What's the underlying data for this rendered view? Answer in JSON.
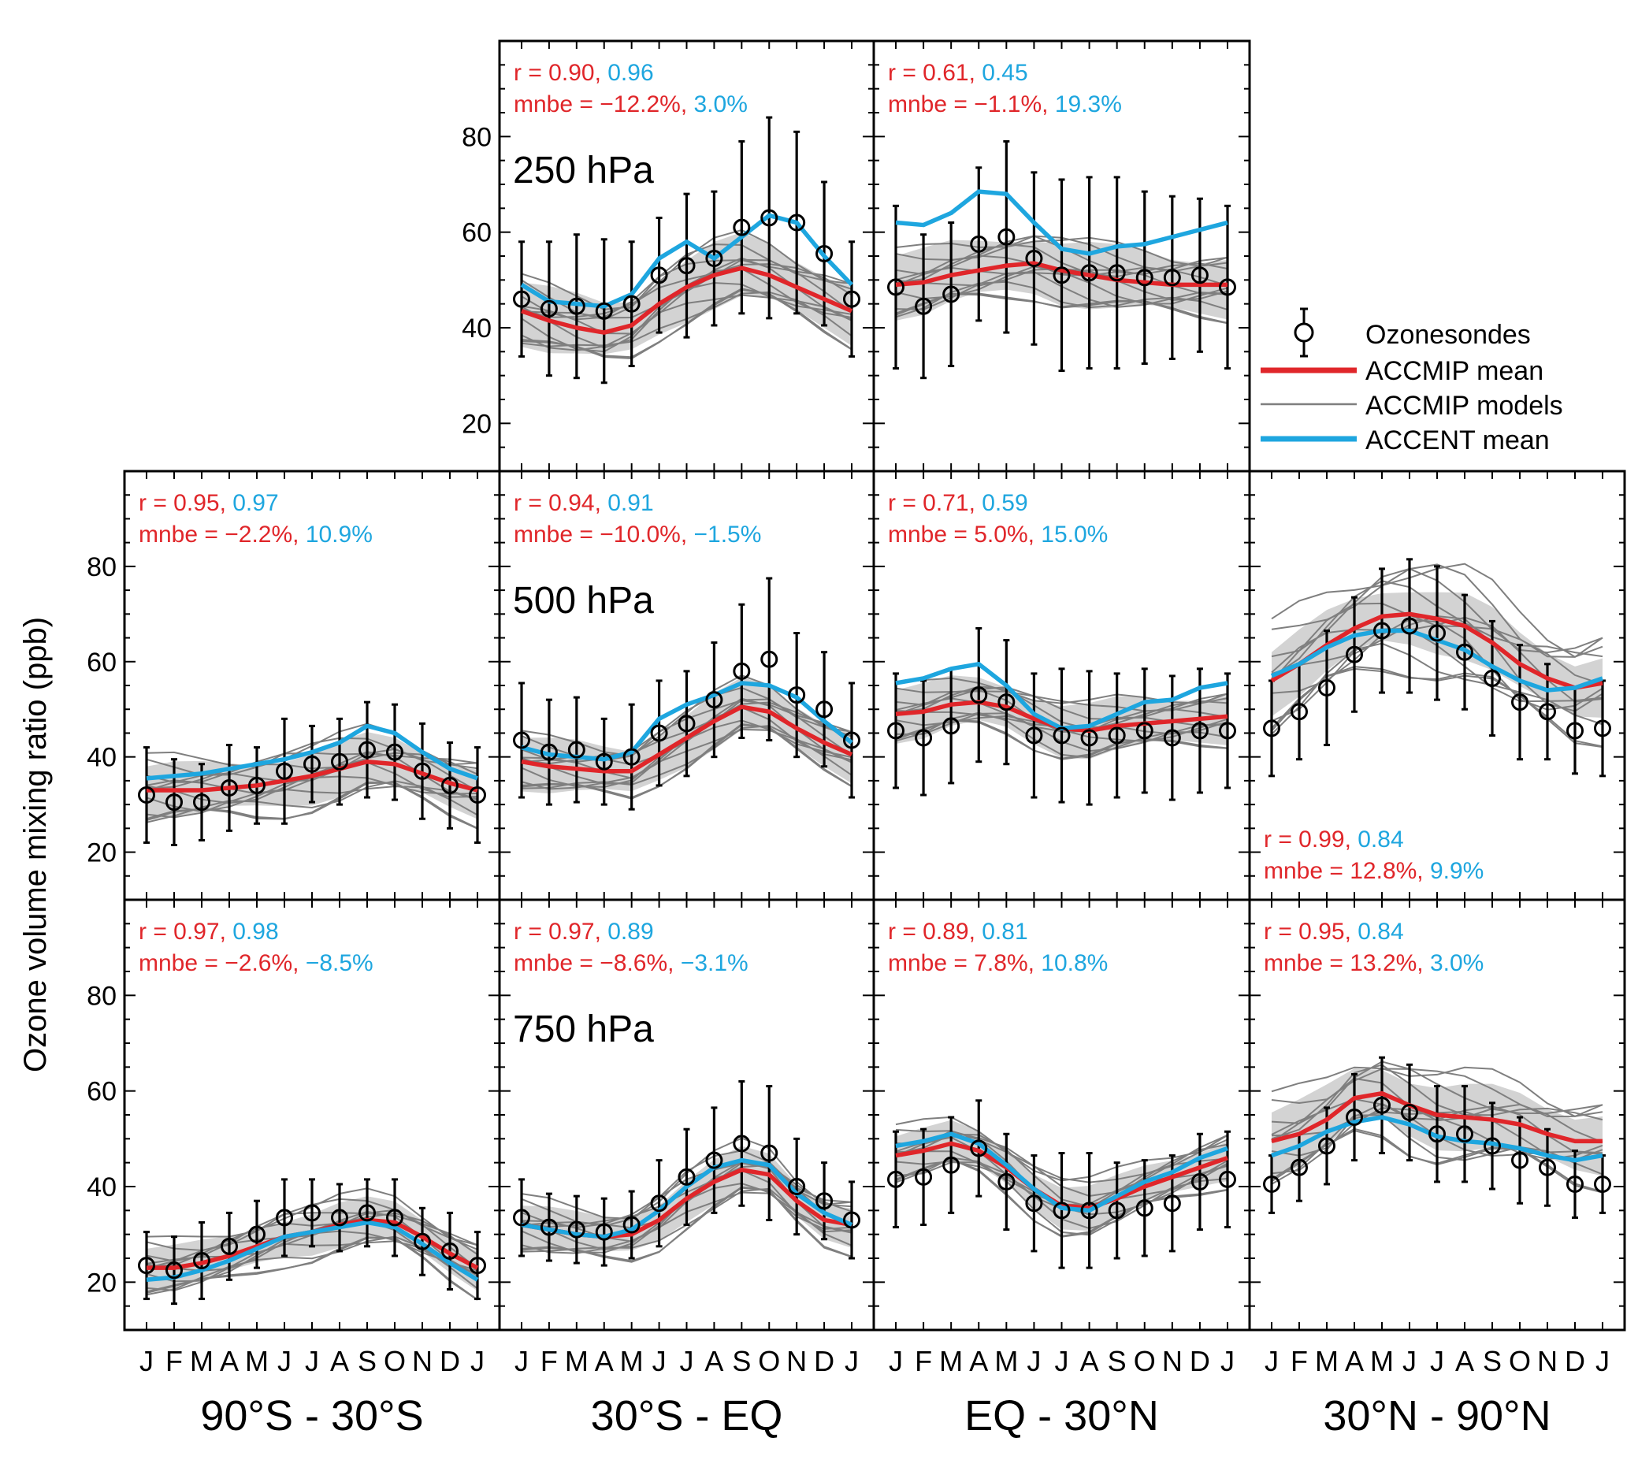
{
  "figure": {
    "ylabel": "Ozone volume mixing ratio (ppb)",
    "month_labels": [
      "J",
      "F",
      "M",
      "A",
      "M",
      "J",
      "J",
      "A",
      "S",
      "O",
      "N",
      "D",
      "J"
    ],
    "yticks": [
      20,
      40,
      60,
      80
    ],
    "columns": [
      "90°S - 30°S",
      "30°S - EQ",
      "EQ - 30°N",
      "30°N - 90°N"
    ],
    "pressure_labels": [
      "250 hPa",
      "500 hPa",
      "750 hPa"
    ],
    "colors": {
      "accmip_mean": "#e0262a",
      "accent_mean": "#1ea6df",
      "models": "#7f7f7f",
      "spread": "#d3d3d3",
      "obs": "#000000"
    }
  },
  "legend": {
    "obs": "Ozonesondes",
    "accmip_mean": "ACCMIP mean",
    "accmip_models": "ACCMIP models",
    "accent_mean": "ACCENT mean"
  },
  "chart_data": {
    "type": "line",
    "ylim": [
      10,
      100
    ],
    "xlabel": "",
    "ylabel": "Ozone volume mixing ratio (ppb)",
    "panels": [
      {
        "id": "250-sh-trop",
        "row": 0,
        "col": 1,
        "stats": {
          "r_prefix": "r = ",
          "r_accmip": "0.90",
          "r_accent": "0.96",
          "mnbe_prefix": "mnbe = ",
          "mnbe_accmip": "−12.2%",
          "mnbe_accent": "3.0%",
          "position": "top"
        },
        "obs": [
          46,
          44,
          44.5,
          43.5,
          45,
          51,
          53,
          54.5,
          61,
          63,
          62,
          55.5,
          46
        ],
        "obs_err": [
          12,
          14,
          15,
          15,
          13,
          12,
          15,
          14,
          18,
          21,
          19,
          15,
          12
        ],
        "accmip_mean": [
          43.5,
          41.5,
          40,
          39,
          40.5,
          45,
          48.5,
          51,
          52.5,
          51,
          48.5,
          46,
          43.5
        ],
        "accent_mean": [
          49,
          45.5,
          45,
          44.5,
          47,
          54.5,
          58,
          54.5,
          59,
          63.5,
          62,
          55,
          49
        ],
        "spread_width": 6,
        "model_amp": 6
      },
      {
        "id": "250-nh-trop",
        "row": 0,
        "col": 2,
        "stats": {
          "r_prefix": "r = ",
          "r_accmip": "0.61",
          "r_accent": "0.45",
          "mnbe_prefix": "mnbe = ",
          "mnbe_accmip": "−1.1%",
          "mnbe_accent": "19.3%",
          "position": "top"
        },
        "obs": [
          48.5,
          44.5,
          47,
          57.5,
          59,
          54.5,
          51,
          51.5,
          51.5,
          50.5,
          50.5,
          51,
          48.5
        ],
        "obs_err": [
          17,
          15,
          15,
          16,
          20,
          18,
          20,
          20,
          20,
          18,
          17,
          16,
          17
        ],
        "accmip_mean": [
          49,
          49.5,
          51,
          52,
          53,
          53.5,
          52,
          51,
          50,
          49.5,
          49,
          49,
          49
        ],
        "accent_mean": [
          62,
          61.5,
          64,
          68.5,
          68,
          62,
          56.5,
          55.5,
          57,
          57.5,
          59,
          60.5,
          62
        ],
        "spread_width": 6,
        "model_amp": 6
      },
      {
        "id": "500-sh-ext",
        "row": 1,
        "col": 0,
        "stats": {
          "r_prefix": "r = ",
          "r_accmip": "0.95",
          "r_accent": "0.97",
          "mnbe_prefix": "mnbe = ",
          "mnbe_accmip": "−2.2%",
          "mnbe_accent": "10.9%",
          "position": "top"
        },
        "obs": [
          32,
          30.5,
          30.5,
          33.5,
          34,
          37,
          38.5,
          39,
          41.5,
          41,
          37,
          34,
          32
        ],
        "obs_err": [
          10,
          9,
          8,
          9,
          8,
          11,
          8,
          9,
          10,
          10,
          10,
          9,
          10
        ],
        "accmip_mean": [
          33,
          33,
          33,
          33.5,
          34,
          35,
          36,
          37.5,
          39,
          38.5,
          36.5,
          34.5,
          33
        ],
        "accent_mean": [
          35.5,
          36,
          36.5,
          37.5,
          38.5,
          39.5,
          41,
          43,
          46.5,
          45,
          41,
          37.5,
          35.5
        ],
        "spread_width": 5,
        "model_amp": 6
      },
      {
        "id": "500-sh-trop",
        "row": 1,
        "col": 1,
        "stats": {
          "r_prefix": "r = ",
          "r_accmip": "0.94",
          "r_accent": "0.91",
          "mnbe_prefix": "mnbe = ",
          "mnbe_accmip": "−10.0%",
          "mnbe_accent": "−1.5%",
          "position": "top"
        },
        "obs": [
          43.5,
          41,
          41.5,
          39,
          40,
          45,
          47,
          52,
          58,
          60.5,
          53,
          50,
          43.5
        ],
        "obs_err": [
          12,
          11,
          11,
          9,
          11,
          11,
          11,
          12,
          14,
          17,
          13,
          12,
          12
        ],
        "accmip_mean": [
          39,
          38,
          37.5,
          37,
          37,
          40.5,
          44,
          47.5,
          50.5,
          49.5,
          46,
          43,
          40.5
        ],
        "accent_mean": [
          42,
          40.5,
          40,
          39.5,
          41,
          48,
          51,
          53,
          55.5,
          55,
          52.5,
          47.5,
          43
        ],
        "spread_width": 5,
        "model_amp": 5
      },
      {
        "id": "500-nh-trop",
        "row": 1,
        "col": 2,
        "stats": {
          "r_prefix": "r = ",
          "r_accmip": "0.71",
          "r_accent": "0.59",
          "mnbe_prefix": "mnbe = ",
          "mnbe_accmip": "5.0%",
          "mnbe_accent": "15.0%",
          "position": "top"
        },
        "obs": [
          45.5,
          44,
          46.5,
          53,
          51.5,
          44.5,
          44.5,
          44,
          44.5,
          45.5,
          44,
          45.5,
          45.5
        ],
        "obs_err": [
          12,
          12,
          12,
          14,
          13,
          13,
          14,
          14,
          13,
          13,
          13,
          13,
          12
        ],
        "accmip_mean": [
          49,
          49.5,
          51,
          51.5,
          50.5,
          48,
          46,
          45.5,
          46.5,
          47,
          47.5,
          48,
          48.5
        ],
        "accent_mean": [
          55.5,
          56.5,
          58.5,
          59.5,
          55,
          49,
          46,
          46.5,
          49,
          51.5,
          52,
          54.5,
          55.5
        ],
        "spread_width": 5,
        "model_amp": 5
      },
      {
        "id": "500-nh-ext",
        "row": 1,
        "col": 3,
        "stats": {
          "r_prefix": "r = ",
          "r_accmip": "0.99",
          "r_accent": "0.84",
          "mnbe_prefix": "mnbe = ",
          "mnbe_accmip": "12.8%",
          "mnbe_accent": "9.9%",
          "position": "bottom"
        },
        "obs": [
          46,
          49.5,
          54.5,
          61.5,
          66.5,
          67.5,
          66,
          62,
          56.5,
          51.5,
          49.5,
          45.5,
          46
        ],
        "obs_err": [
          10,
          10,
          12,
          12,
          13,
          14,
          14,
          12,
          12,
          12,
          10,
          9,
          10
        ],
        "accmip_mean": [
          56,
          59.5,
          63.5,
          67,
          69.5,
          70,
          69,
          67.5,
          64,
          59.5,
          56.5,
          54.5,
          55.5
        ],
        "accent_mean": [
          57,
          59.5,
          63,
          65.5,
          66.5,
          66.5,
          64.5,
          62.5,
          59,
          56,
          54,
          54.5,
          56.5
        ],
        "spread_width": 6,
        "model_amp": 10
      },
      {
        "id": "750-sh-ext",
        "row": 2,
        "col": 0,
        "stats": {
          "r_prefix": "r = ",
          "r_accmip": "0.97",
          "r_accent": "0.98",
          "mnbe_prefix": "mnbe = ",
          "mnbe_accmip": "−2.6%",
          "mnbe_accent": "−8.5%",
          "position": "top"
        },
        "obs": [
          23.5,
          22.5,
          24.5,
          27.5,
          30,
          33.5,
          34.5,
          33.5,
          34.5,
          33.5,
          28.5,
          26.5,
          23.5
        ],
        "obs_err": [
          7,
          7,
          8,
          7,
          7,
          8,
          7,
          7,
          7,
          8,
          7,
          8,
          7
        ],
        "accmip_mean": [
          23,
          23,
          24,
          25.5,
          27.5,
          29.5,
          30.5,
          32,
          33,
          32.5,
          29.5,
          26,
          23
        ],
        "accent_mean": [
          20.5,
          21,
          22.5,
          24.5,
          27,
          29.5,
          30.5,
          31.5,
          32.5,
          31.5,
          28,
          24,
          20.5
        ],
        "spread_width": 4,
        "model_amp": 5
      },
      {
        "id": "750-sh-trop",
        "row": 2,
        "col": 1,
        "stats": {
          "r_prefix": "r = ",
          "r_accmip": "0.97",
          "r_accent": "0.89",
          "mnbe_prefix": "mnbe = ",
          "mnbe_accmip": "−8.6%",
          "mnbe_accent": "−3.1%",
          "position": "top"
        },
        "obs": [
          33.5,
          31.5,
          31,
          30.5,
          32,
          36.5,
          42,
          45.5,
          49,
          47,
          40,
          37,
          33
        ],
        "obs_err": [
          8,
          7,
          7,
          7,
          7,
          9,
          10,
          11,
          13,
          14,
          10,
          8,
          8
        ],
        "accmip_mean": [
          32,
          31,
          30,
          29.5,
          30,
          33,
          37.5,
          41,
          43.5,
          42.5,
          37,
          33,
          32
        ],
        "accent_mean": [
          32,
          31,
          30,
          29.5,
          31,
          35,
          40,
          44,
          45.5,
          44.5,
          38.5,
          34.5,
          32
        ],
        "spread_width": 4,
        "model_amp": 5
      },
      {
        "id": "750-nh-trop",
        "row": 2,
        "col": 2,
        "stats": {
          "r_prefix": "r = ",
          "r_accmip": "0.89",
          "r_accent": "0.81",
          "mnbe_prefix": "mnbe = ",
          "mnbe_accmip": "7.8%",
          "mnbe_accent": "10.8%",
          "position": "top"
        },
        "obs": [
          41.5,
          42,
          44.5,
          48,
          41,
          36.5,
          35,
          35,
          35,
          35.5,
          36.5,
          41,
          41.5
        ],
        "obs_err": [
          10,
          10,
          10,
          10,
          10,
          10,
          12,
          12,
          10,
          10,
          10,
          10,
          10
        ],
        "accmip_mean": [
          46.5,
          47.5,
          49,
          47.5,
          44,
          39.5,
          36,
          35.5,
          37.5,
          40,
          42,
          44,
          46
        ],
        "accent_mean": [
          48.5,
          49.5,
          51,
          49,
          44.5,
          39.5,
          35.5,
          35,
          38,
          41,
          43,
          46,
          48
        ],
        "spread_width": 4,
        "model_amp": 5
      },
      {
        "id": "750-nh-ext",
        "row": 2,
        "col": 3,
        "stats": {
          "r_prefix": "r = ",
          "r_accmip": "0.95",
          "r_accent": "0.84",
          "mnbe_prefix": "mnbe = ",
          "mnbe_accmip": "13.2%",
          "mnbe_accent": "3.0%",
          "position": "top"
        },
        "obs": [
          40.5,
          44,
          48.5,
          54.5,
          57,
          55.5,
          51,
          51,
          48.5,
          45.5,
          44,
          40.5,
          40.5
        ],
        "obs_err": [
          6,
          7,
          8,
          9,
          10,
          10,
          10,
          10,
          9,
          9,
          8,
          7,
          6
        ],
        "accmip_mean": [
          49.5,
          51,
          54,
          58.5,
          59.5,
          57,
          55,
          54.5,
          54,
          53,
          51,
          49.5,
          49.5
        ],
        "accent_mean": [
          46.5,
          48.5,
          51.5,
          53.5,
          54.5,
          53,
          50.5,
          49.5,
          49,
          48,
          46.5,
          45.5,
          46.5
        ],
        "spread_width": 6,
        "model_amp": 8
      }
    ]
  }
}
